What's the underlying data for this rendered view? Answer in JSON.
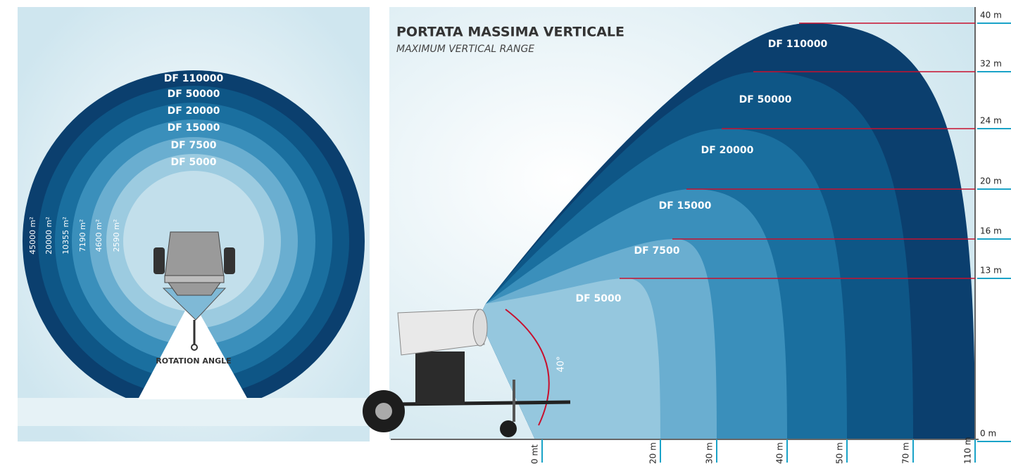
{
  "coverage": {
    "models": [
      "DF 110000",
      "DF 50000",
      "DF 20000",
      "DF 15000",
      "DF 7500",
      "DF 5000"
    ],
    "areas": [
      "45000 m²",
      "20000 m²",
      "10355 m²",
      "7190 m²",
      "4600 m²",
      "2590 m²"
    ],
    "rotation_label": "ROTATION ANGLE"
  },
  "vertical_range": {
    "title": "PORTATA MASSIMA VERTICALE",
    "subtitle": "MAXIMUM VERTICAL RANGE",
    "models": [
      "DF 110000",
      "DF 50000",
      "DF 20000",
      "DF 15000",
      "DF 7500",
      "DF 5000"
    ],
    "heights": [
      "40 m",
      "32 m",
      "24 m",
      "20 m",
      "16 m",
      "13 m",
      "0 m"
    ],
    "distances": [
      "0 mt",
      "20 m",
      "30 m",
      "40 m",
      "50 m",
      "70 m",
      "110 m"
    ],
    "angle": "40°"
  }
}
